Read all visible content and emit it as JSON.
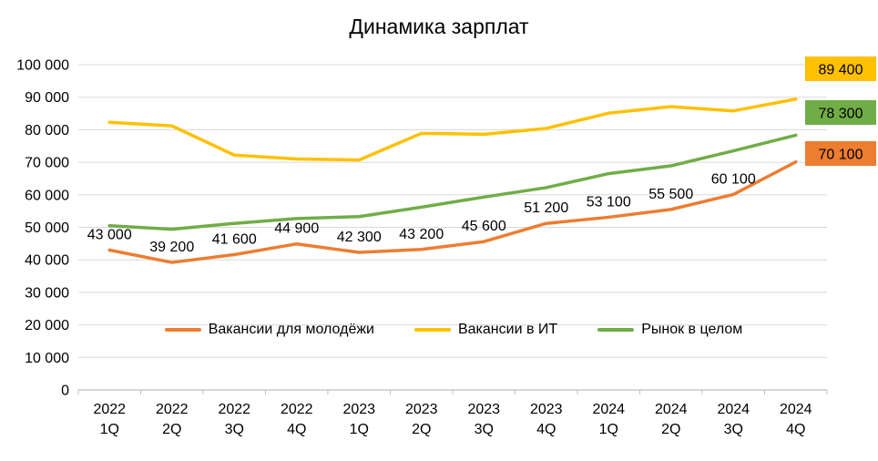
{
  "chart_data": {
    "type": "line",
    "title": "Динамика зарплат",
    "categories": [
      "2022 1Q",
      "2022 2Q",
      "2022 3Q",
      "2022 4Q",
      "2023 1Q",
      "2023 2Q",
      "2023 3Q",
      "2023 4Q",
      "2024 1Q",
      "2024 2Q",
      "2024 3Q",
      "2024 4Q"
    ],
    "series": [
      {
        "name": "Вакансии для молодёжи",
        "color": "#ED7D31",
        "values": [
          43000,
          39200,
          41600,
          44900,
          42300,
          43200,
          45600,
          51200,
          53100,
          55500,
          60100,
          70100
        ],
        "point_labels": [
          "43 000",
          "39 200",
          "41 600",
          "44 900",
          "42 300",
          "43 200",
          "45 600",
          "51 200",
          "53 100",
          "55 500",
          "60 100"
        ]
      },
      {
        "name": "Вакансии в ИТ",
        "color": "#FFC000",
        "values": [
          82300,
          81200,
          72200,
          71000,
          70700,
          78900,
          78600,
          80400,
          85100,
          87100,
          85800,
          89400
        ],
        "point_labels": []
      },
      {
        "name": "Рынок в целом",
        "color": "#70AD47",
        "values": [
          50500,
          49400,
          51200,
          52700,
          53300,
          56200,
          59300,
          62200,
          66500,
          68900,
          73500,
          78300
        ],
        "point_labels": []
      }
    ],
    "end_labels": [
      {
        "text": "89 400",
        "color": "#FFC000"
      },
      {
        "text": "78 300",
        "color": "#70AD47"
      },
      {
        "text": "70 100",
        "color": "#ED7D31"
      }
    ],
    "ylim": [
      0,
      100000
    ],
    "ytick_step": 10000,
    "yticks": [
      "0",
      "10 000",
      "20 000",
      "30 000",
      "40 000",
      "50 000",
      "60 000",
      "70 000",
      "80 000",
      "90 000",
      "100 000"
    ],
    "grid_on": true,
    "legend_position": "inside-bottom-center",
    "grid_color": "#D9D9D9",
    "axis_color": "#BFBFBF",
    "text_color": "#000000"
  }
}
